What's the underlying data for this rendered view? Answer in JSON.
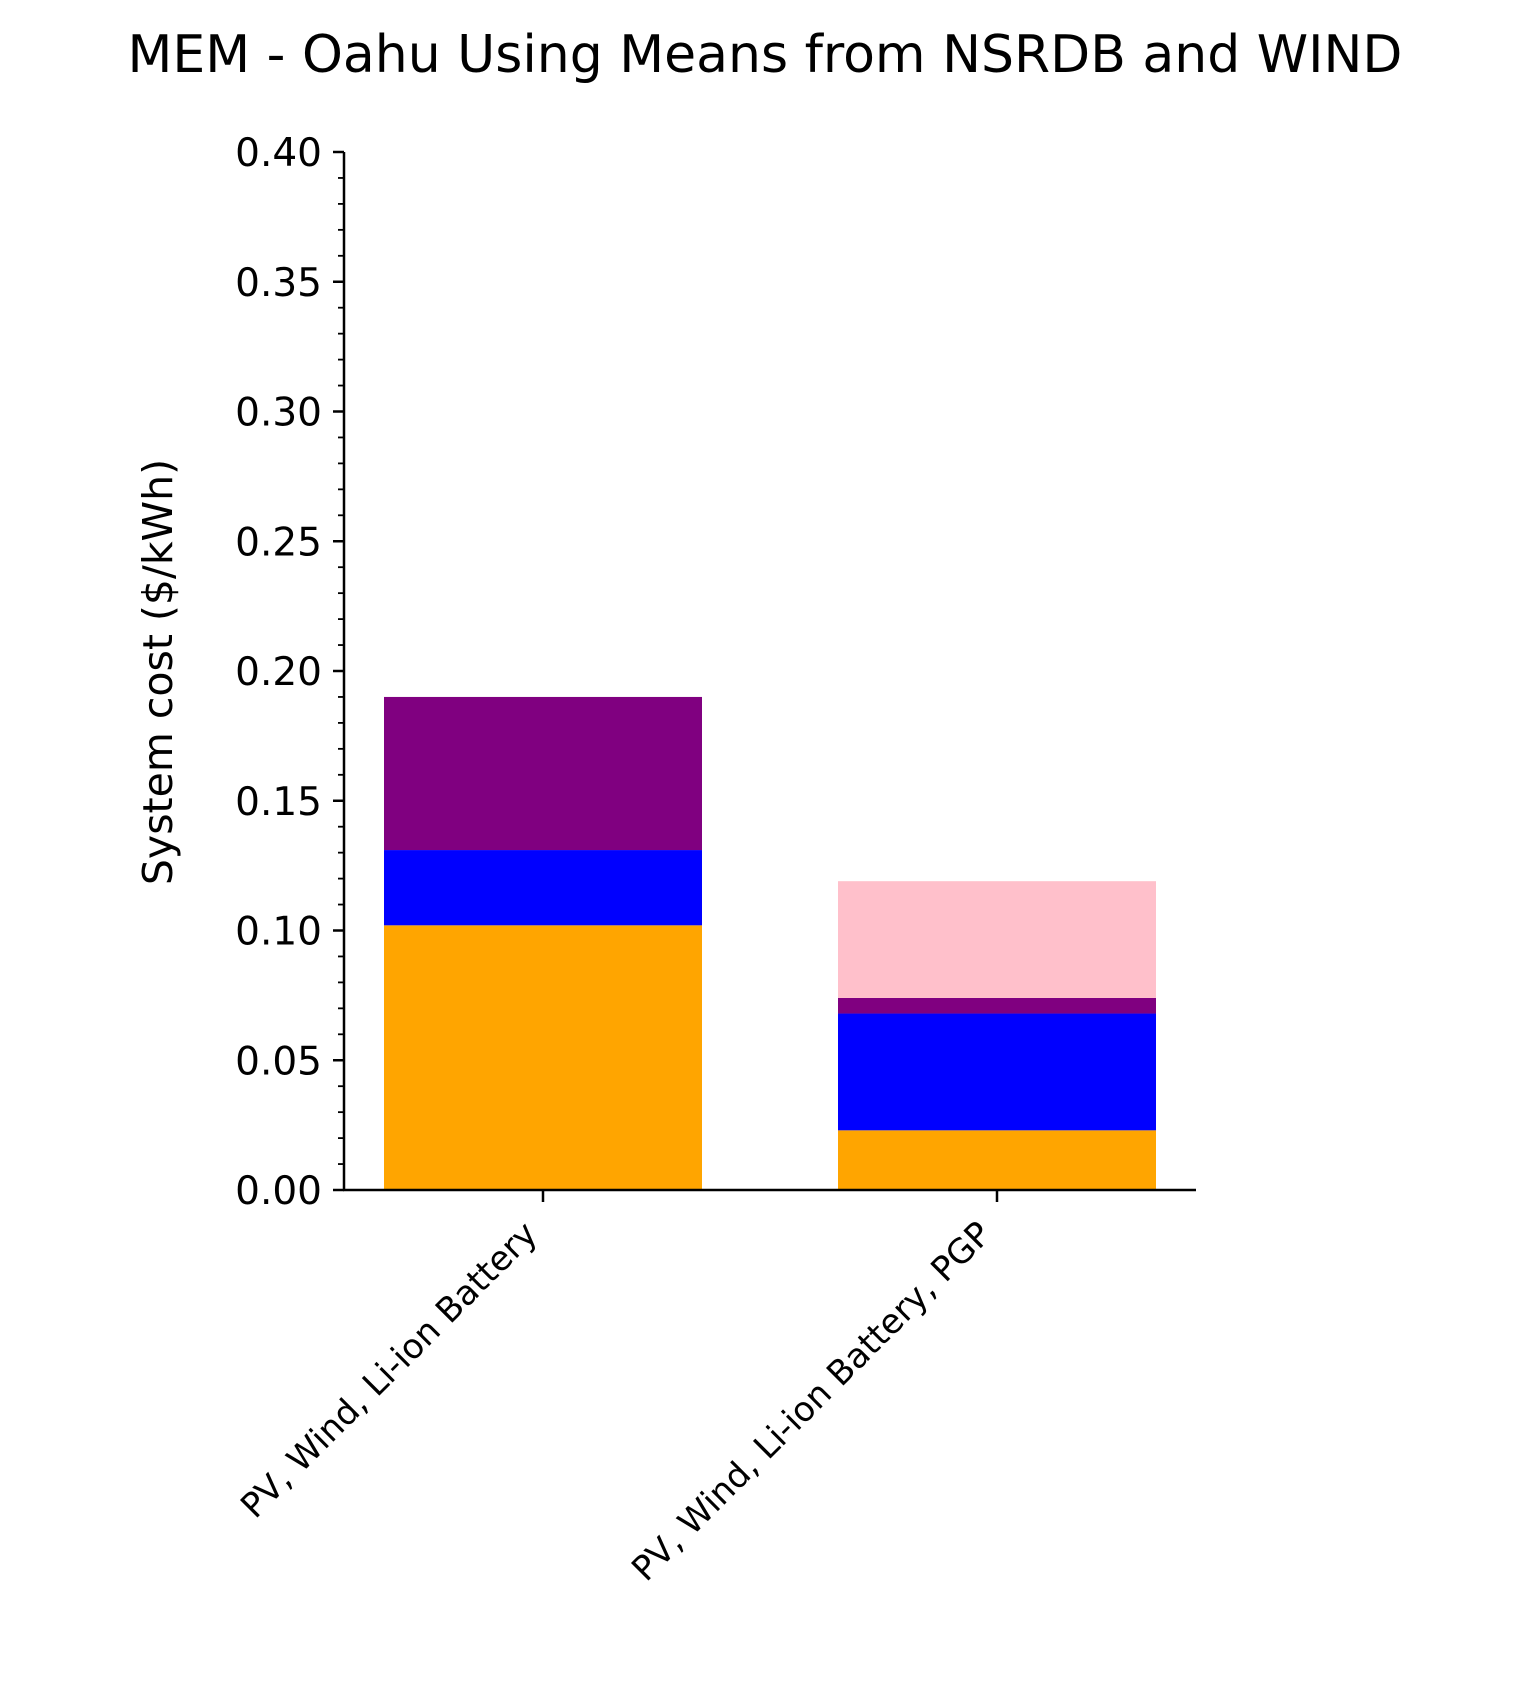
{
  "chart_data": {
    "type": "bar",
    "stacked": true,
    "title": "MEM - Oahu Using Means from NSRDB and WIND",
    "xlabel": "",
    "ylabel": "System cost ($/kWh)",
    "ylim": [
      0,
      0.4
    ],
    "yticks": [
      "0.00",
      "0.05",
      "0.10",
      "0.15",
      "0.20",
      "0.25",
      "0.30",
      "0.35",
      "0.40"
    ],
    "y_minor_step": 0.01,
    "grid": false,
    "legend": "none",
    "categories": [
      "PV, Wind, Li-ion Battery",
      "PV, Wind, Li-ion Battery, PGP"
    ],
    "series": [
      {
        "color": "#FFA500",
        "values": [
          0.102,
          0.023
        ]
      },
      {
        "color": "#0000FF",
        "values": [
          0.029,
          0.045
        ]
      },
      {
        "color": "#800080",
        "values": [
          0.059,
          0.006
        ]
      },
      {
        "color": "#FFC0CB",
        "values": [
          0.0,
          0.045
        ]
      }
    ]
  }
}
